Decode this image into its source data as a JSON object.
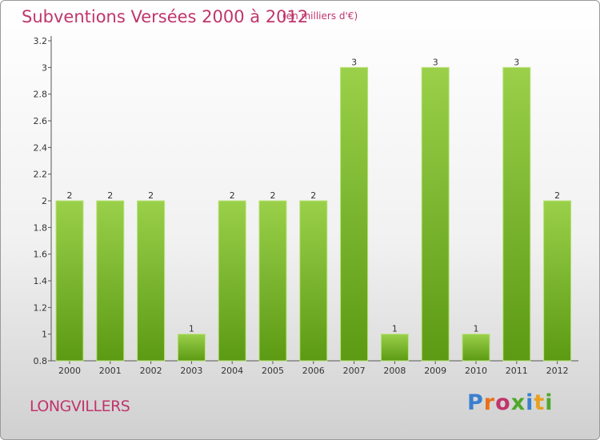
{
  "header": {
    "title": "Subventions Versées 2000 à 2012",
    "unit_note": "(en milliers d'€)"
  },
  "footer": {
    "commune": "LONGVILLERS",
    "brand": "Proxiti",
    "brand_colors": [
      "#3a7fd0",
      "#e8701a",
      "#c0356b",
      "#4fa82a",
      "#3a7fd0",
      "#e8a020",
      "#4fa82a"
    ]
  },
  "colors": {
    "title": "#c0356b",
    "bar_light": "#9ad04a",
    "bar_dark": "#5c9a14",
    "axis": "#555555"
  },
  "chart_data": {
    "type": "bar",
    "title": "Subventions Versées 2000 à 2012",
    "subtitle": "(en milliers d'€)",
    "categories": [
      "2000",
      "2001",
      "2002",
      "2003",
      "2004",
      "2005",
      "2006",
      "2007",
      "2008",
      "2009",
      "2010",
      "2011",
      "2012"
    ],
    "values": [
      2,
      2,
      2,
      1,
      2,
      2,
      2,
      3,
      1,
      3,
      1,
      3,
      2
    ],
    "data_labels": [
      "2",
      "2",
      "2",
      "1",
      "2",
      "2",
      "2",
      "3",
      "1",
      "3",
      "1",
      "3",
      "2"
    ],
    "ylim": [
      0.8,
      3.2
    ],
    "yticks": [
      0.8,
      1,
      1.2,
      1.4,
      1.6,
      1.8,
      2,
      2.2,
      2.4,
      2.6,
      2.8,
      3,
      3.2
    ],
    "ytick_labels": [
      "0.8",
      "1",
      "1.2",
      "1.4",
      "1.6",
      "1.8",
      "2",
      "2.2",
      "2.4",
      "2.6",
      "2.8",
      "3",
      "3.2"
    ],
    "grid": false,
    "legend": "none"
  }
}
